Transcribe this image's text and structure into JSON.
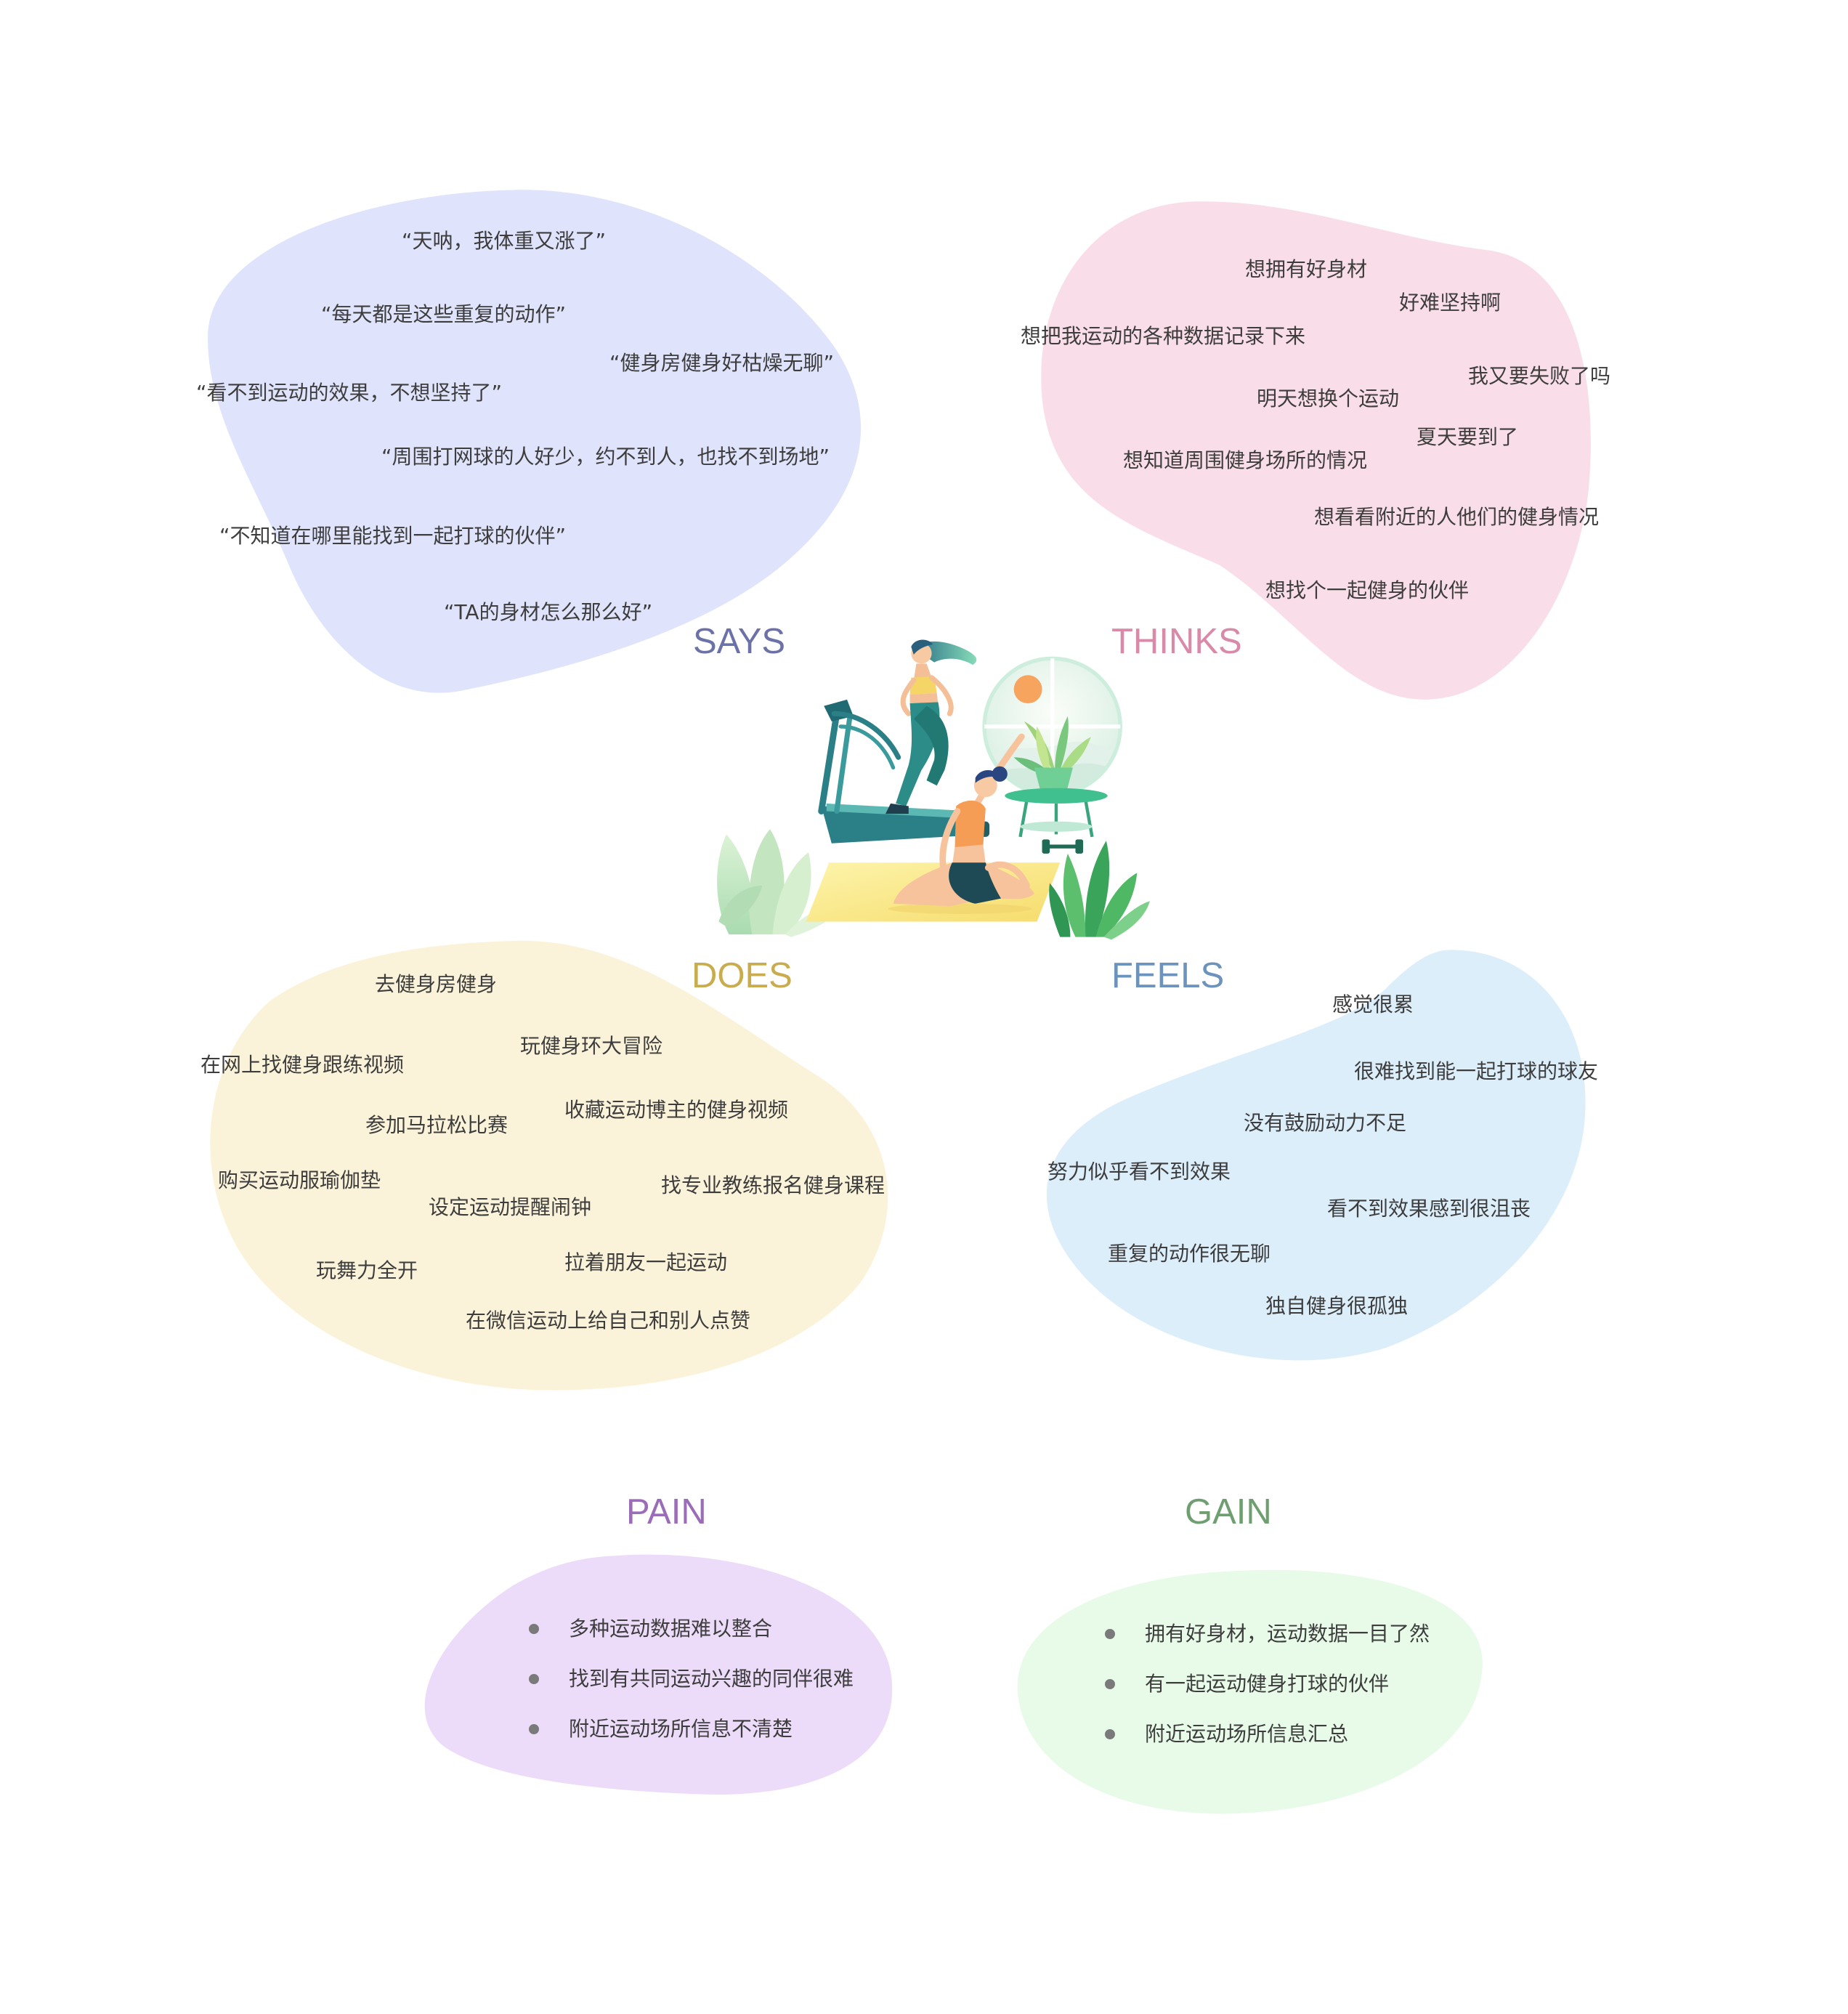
{
  "says": {
    "label": "SAYS",
    "items": [
      "“天呐，我体重又涨了”",
      "“每天都是这些重复的动作”",
      "“健身房健身好枯燥无聊”",
      "“看不到运动的效果，不想坚持了”",
      "“周围打网球的人好少，约不到人，也找不到场地”",
      "“不知道在哪里能找到一起打球的伙伴”",
      "“TA的身材怎么那么好”"
    ]
  },
  "thinks": {
    "label": "THINKS",
    "items": [
      "想拥有好身材",
      "好难坚持啊",
      "想把我运动的各种数据记录下来",
      "我又要失败了吗",
      "明天想换个运动",
      "夏天要到了",
      "想知道周围健身场所的情况",
      "想看看附近的人他们的健身情况",
      "想找个一起健身的伙伴"
    ]
  },
  "does": {
    "label": "DOES",
    "items": [
      "去健身房健身",
      "玩健身环大冒险",
      "在网上找健身跟练视频",
      "收藏运动博主的健身视频",
      "参加马拉松比赛",
      "购买运动服瑜伽垫",
      "找专业教练报名健身课程",
      "设定运动提醒闹钟",
      "拉着朋友一起运动",
      "玩舞力全开",
      "在微信运动上给自己和别人点赞"
    ]
  },
  "feels": {
    "label": "FEELS",
    "items": [
      "感觉很累",
      "很难找到能一起打球的球友",
      "没有鼓励动力不足",
      "努力似乎看不到效果",
      "看不到效果感到很沮丧",
      "重复的动作很无聊",
      "独自健身很孤独"
    ]
  },
  "pain": {
    "label": "PAIN",
    "items": [
      "多种运动数据难以整合",
      "找到有共同运动兴趣的同伴很难",
      "附近运动场所信息不清楚"
    ]
  },
  "gain": {
    "label": "GAIN",
    "items": [
      "拥有好身材，运动数据一目了然",
      "有一起运动健身打球的伙伴",
      "附近运动场所信息汇总"
    ]
  },
  "colors": {
    "says_label": "#6c71a8",
    "says_bg": "#dfe3fb",
    "thinks_label": "#d98aa9",
    "thinks_bg": "#f9dde8",
    "does_label": "#c9ac4f",
    "does_bg": "#fbf3d9",
    "feels_label": "#6b93bb",
    "feels_bg": "#ddeefb",
    "pain_label": "#9b6cb7",
    "pain_bg": "#ecdcf9",
    "gain_label": "#6f9e71",
    "gain_bg": "#e8fbe8",
    "text": "#3d3d3d",
    "bullet": "#7a7a7a"
  },
  "illustration": "fitness-illustration"
}
